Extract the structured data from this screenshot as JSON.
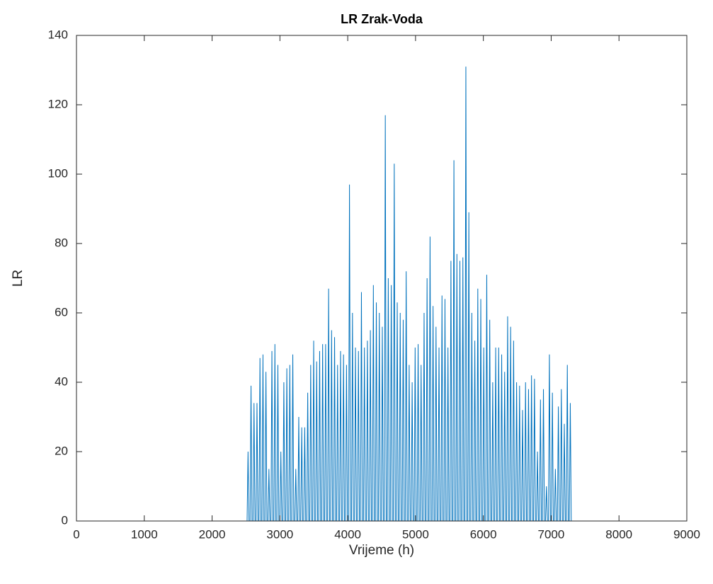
{
  "chart_data": {
    "type": "line",
    "title": "LR Zrak-Voda",
    "xlabel": "Vrijeme (h)",
    "ylabel": "LR",
    "color": "#0072bd",
    "xlim": [
      0,
      9000
    ],
    "xticks": [
      0,
      1000,
      2000,
      3000,
      4000,
      5000,
      6000,
      7000,
      8000,
      9000
    ],
    "ylim": [
      0,
      140
    ],
    "yticks": [
      0,
      20,
      40,
      60,
      80,
      100,
      120,
      140
    ],
    "grid": false,
    "x": [
      0,
      2516,
      2530,
      2544,
      2560,
      2574,
      2588,
      2604,
      2618,
      2632,
      2648,
      2662,
      2676,
      2692,
      2706,
      2720,
      2736,
      2750,
      2764,
      2780,
      2794,
      2808,
      2824,
      2838,
      2852,
      2868,
      2882,
      2896,
      2912,
      2926,
      2940,
      2956,
      2970,
      2984,
      3000,
      3014,
      3028,
      3044,
      3058,
      3072,
      3088,
      3102,
      3116,
      3132,
      3146,
      3160,
      3176,
      3190,
      3204,
      3220,
      3234,
      3248,
      3264,
      3278,
      3292,
      3308,
      3322,
      3336,
      3352,
      3366,
      3380,
      3396,
      3410,
      3424,
      3440,
      3454,
      3468,
      3484,
      3498,
      3512,
      3528,
      3542,
      3556,
      3572,
      3586,
      3600,
      3616,
      3630,
      3644,
      3660,
      3674,
      3688,
      3704,
      3718,
      3732,
      3748,
      3762,
      3776,
      3792,
      3806,
      3820,
      3836,
      3850,
      3864,
      3880,
      3894,
      3908,
      3924,
      3938,
      3952,
      3968,
      3982,
      3996,
      4012,
      4026,
      4040,
      4056,
      4070,
      4084,
      4100,
      4114,
      4128,
      4144,
      4158,
      4172,
      4188,
      4202,
      4216,
      4232,
      4246,
      4260,
      4276,
      4290,
      4304,
      4320,
      4334,
      4348,
      4364,
      4378,
      4392,
      4408,
      4422,
      4436,
      4452,
      4466,
      4480,
      4496,
      4510,
      4524,
      4540,
      4554,
      4568,
      4584,
      4598,
      4612,
      4628,
      4642,
      4656,
      4672,
      4686,
      4700,
      4716,
      4730,
      4744,
      4760,
      4774,
      4788,
      4804,
      4818,
      4832,
      4848,
      4862,
      4876,
      4892,
      4906,
      4920,
      4936,
      4950,
      4964,
      4980,
      4994,
      5008,
      5024,
      5038,
      5052,
      5068,
      5082,
      5096,
      5112,
      5126,
      5140,
      5156,
      5170,
      5184,
      5200,
      5214,
      5228,
      5244,
      5258,
      5272,
      5288,
      5302,
      5316,
      5332,
      5346,
      5360,
      5376,
      5390,
      5404,
      5420,
      5434,
      5448,
      5464,
      5478,
      5492,
      5508,
      5522,
      5536,
      5552,
      5566,
      5580,
      5596,
      5610,
      5624,
      5640,
      5654,
      5668,
      5684,
      5698,
      5712,
      5728,
      5742,
      5756,
      5772,
      5786,
      5800,
      5816,
      5830,
      5844,
      5860,
      5874,
      5888,
      5904,
      5918,
      5932,
      5948,
      5962,
      5976,
      5992,
      6006,
      6020,
      6036,
      6050,
      6064,
      6080,
      6094,
      6108,
      6124,
      6138,
      6152,
      6168,
      6182,
      6196,
      6212,
      6226,
      6240,
      6256,
      6270,
      6284,
      6300,
      6314,
      6328,
      6344,
      6358,
      6372,
      6388,
      6402,
      6416,
      6432,
      6446,
      6460,
      6476,
      6490,
      6504,
      6520,
      6534,
      6548,
      6564,
      6578,
      6592,
      6608,
      6622,
      6636,
      6652,
      6666,
      6680,
      6696,
      6710,
      6724,
      6740,
      6754,
      6768,
      6784,
      6798,
      6812,
      6828,
      6842,
      6856,
      6872,
      6886,
      6900,
      6916,
      6930,
      6944,
      6960,
      6974,
      6988,
      7004,
      7018,
      7032,
      7048,
      7062,
      7076,
      7092,
      7106,
      7120,
      7136,
      7150,
      7164,
      7180,
      7194,
      7208,
      7224,
      7238,
      7252,
      7268,
      7282,
      7296,
      8760
    ],
    "values": [
      0,
      0,
      20,
      0,
      0,
      39,
      0,
      0,
      34,
      0,
      0,
      34,
      0,
      0,
      47,
      0,
      0,
      48,
      0,
      0,
      43,
      0,
      0,
      15,
      0,
      0,
      49,
      0,
      0,
      51,
      0,
      0,
      45,
      0,
      0,
      20,
      0,
      0,
      40,
      0,
      0,
      44,
      0,
      0,
      45,
      0,
      0,
      48,
      0,
      0,
      15,
      0,
      0,
      30,
      0,
      0,
      27,
      0,
      0,
      27,
      0,
      0,
      37,
      0,
      0,
      45,
      0,
      0,
      52,
      0,
      0,
      46,
      0,
      0,
      49,
      0,
      0,
      51,
      0,
      0,
      51,
      0,
      0,
      67,
      0,
      0,
      55,
      0,
      0,
      53,
      0,
      0,
      45,
      0,
      0,
      49,
      0,
      0,
      48,
      0,
      0,
      45,
      0,
      0,
      97,
      0,
      0,
      60,
      0,
      0,
      50,
      0,
      0,
      49,
      0,
      0,
      66,
      0,
      0,
      50,
      0,
      0,
      52,
      0,
      0,
      55,
      0,
      0,
      68,
      0,
      0,
      63,
      0,
      0,
      60,
      0,
      0,
      56,
      0,
      0,
      117,
      0,
      0,
      70,
      0,
      0,
      68,
      0,
      0,
      103,
      0,
      0,
      63,
      0,
      0,
      60,
      0,
      0,
      58,
      0,
      0,
      72,
      0,
      0,
      45,
      0,
      0,
      40,
      0,
      0,
      50,
      0,
      0,
      51,
      0,
      0,
      45,
      0,
      0,
      60,
      0,
      0,
      70,
      0,
      0,
      82,
      0,
      0,
      62,
      0,
      0,
      56,
      0,
      0,
      50,
      0,
      0,
      65,
      0,
      0,
      64,
      0,
      0,
      50,
      0,
      0,
      75,
      0,
      0,
      104,
      0,
      0,
      77,
      0,
      0,
      75,
      0,
      0,
      76,
      0,
      0,
      131,
      0,
      0,
      89,
      0,
      0,
      60,
      0,
      0,
      52,
      0,
      0,
      67,
      0,
      0,
      64,
      0,
      0,
      50,
      0,
      0,
      71,
      0,
      0,
      58,
      0,
      0,
      40,
      0,
      0,
      50,
      0,
      0,
      50,
      0,
      0,
      48,
      0,
      0,
      43,
      0,
      0,
      59,
      0,
      0,
      56,
      0,
      0,
      52,
      0,
      0,
      40,
      0,
      0,
      39,
      0,
      0,
      32,
      0,
      0,
      40,
      0,
      0,
      38,
      0,
      0,
      42,
      0,
      0,
      41,
      0,
      0,
      20,
      0,
      0,
      35,
      0,
      0,
      38,
      0,
      0,
      10,
      0,
      0,
      48,
      0,
      0,
      37,
      0,
      0,
      15,
      0,
      0,
      33,
      0,
      0,
      38,
      0,
      0,
      28,
      0,
      0,
      45,
      0,
      0,
      34,
      0,
      0
    ]
  }
}
